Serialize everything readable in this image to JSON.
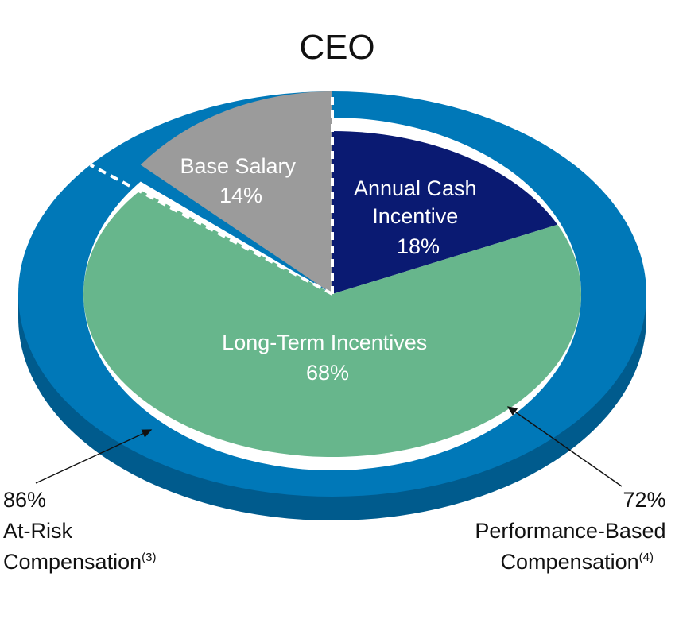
{
  "chart_data": {
    "type": "pie",
    "title": "CEO",
    "slices": [
      {
        "label": "Annual Cash Incentive",
        "label_lines": [
          "Annual Cash",
          "Incentive"
        ],
        "value": 18,
        "value_label": "18%",
        "color": "#0a1a72"
      },
      {
        "label": "Long-Term Incentives",
        "label_lines": [
          "Long-Term Incentives"
        ],
        "value": 68,
        "value_label": "68%",
        "color": "#67b68c"
      },
      {
        "label": "Base Salary",
        "label_lines": [
          "Base Salary"
        ],
        "value": 14,
        "value_label": "14%",
        "color": "#9b9b9b"
      }
    ],
    "rings": [
      {
        "value_label": "86%",
        "label_lines": [
          "At-Risk",
          "Compensation"
        ],
        "footnote": "(3)",
        "color": "#0078b8"
      },
      {
        "value_label": "72%",
        "label_lines": [
          "Performance-Based",
          "Compensation"
        ],
        "footnote": "(4)",
        "color": "#0078b8"
      }
    ],
    "colors": {
      "ring_top": "#0078b8",
      "ring_side": "#005b8d",
      "pie_side": "#2e7a5a",
      "separator": "#ffffff",
      "arrow": "#111111"
    }
  }
}
